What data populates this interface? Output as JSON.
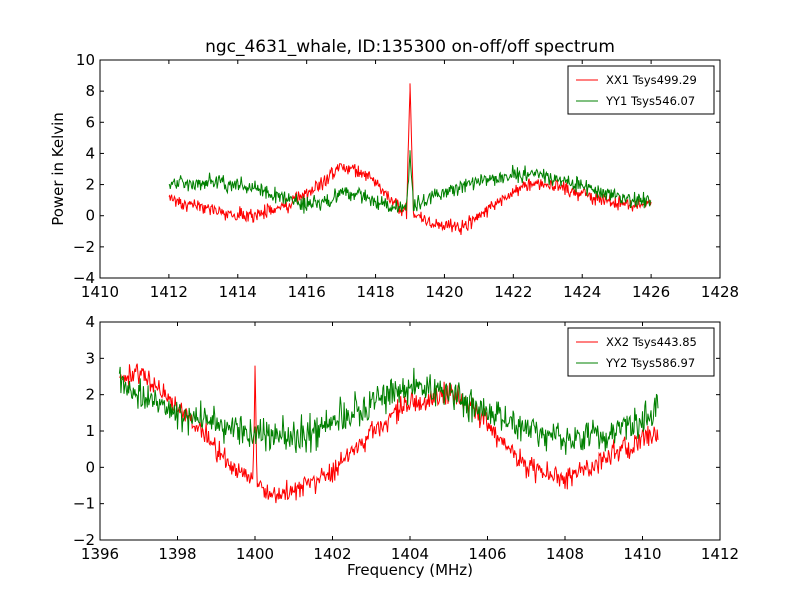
{
  "figure": {
    "title": "ngc_4631_whale, ID:135300 on-off/off spectrum"
  },
  "colors": {
    "XX": "#ff0000",
    "YY": "#008000"
  },
  "chart_data": [
    {
      "type": "line",
      "title": "ngc_4631_whale, ID:135300 on-off/off spectrum",
      "xlabel": "",
      "ylabel": "Power in Kelvin",
      "xlim": [
        1410,
        1428
      ],
      "ylim": [
        -4,
        10
      ],
      "xticks": [
        1410,
        1412,
        1414,
        1416,
        1418,
        1420,
        1422,
        1424,
        1426,
        1428
      ],
      "yticks": [
        -4,
        -2,
        0,
        2,
        4,
        6,
        8,
        10
      ],
      "grid": false,
      "legend_position": "top-right",
      "series": [
        {
          "name": "XX1 Tsys499.29",
          "color": "#ff0000",
          "x": [
            1412.0,
            1412.5,
            1413.0,
            1413.5,
            1414.0,
            1414.5,
            1415.0,
            1415.5,
            1416.0,
            1416.5,
            1417.0,
            1417.3,
            1417.7,
            1418.0,
            1418.5,
            1418.9,
            1419.0,
            1419.1,
            1419.5,
            1420.0,
            1420.5,
            1421.0,
            1421.5,
            1422.0,
            1422.5,
            1423.0,
            1423.5,
            1424.0,
            1424.5,
            1425.0,
            1425.5,
            1426.0
          ],
          "y": [
            1.0,
            0.8,
            0.5,
            0.2,
            0.0,
            0.0,
            0.3,
            0.8,
            1.5,
            2.2,
            3.2,
            3.1,
            2.6,
            2.2,
            0.8,
            0.3,
            8.5,
            0.3,
            -0.4,
            -0.6,
            -0.8,
            0.0,
            0.8,
            1.5,
            2.0,
            2.0,
            1.8,
            1.4,
            1.0,
            0.8,
            0.6,
            0.8
          ]
        },
        {
          "name": "YY1 Tsys546.07",
          "color": "#008000",
          "x": [
            1412.0,
            1412.5,
            1413.0,
            1413.5,
            1414.0,
            1414.5,
            1415.0,
            1415.5,
            1416.0,
            1416.5,
            1417.0,
            1417.5,
            1418.0,
            1418.5,
            1418.9,
            1419.0,
            1419.1,
            1419.5,
            1420.0,
            1420.5,
            1421.0,
            1421.5,
            1422.0,
            1422.5,
            1423.0,
            1423.5,
            1424.0,
            1424.5,
            1425.0,
            1425.5,
            1426.0
          ],
          "y": [
            2.0,
            2.1,
            2.1,
            2.2,
            2.0,
            1.8,
            1.4,
            1.0,
            0.8,
            0.8,
            1.5,
            1.4,
            0.9,
            0.6,
            0.5,
            4.2,
            0.5,
            1.0,
            1.4,
            1.9,
            2.2,
            2.4,
            2.6,
            2.7,
            2.6,
            2.2,
            2.0,
            1.6,
            1.3,
            1.0,
            1.0
          ]
        }
      ]
    },
    {
      "type": "line",
      "title": "",
      "xlabel": "Frequency (MHz)",
      "ylabel": "",
      "xlim": [
        1396,
        1412
      ],
      "ylim": [
        -2,
        4
      ],
      "xticks": [
        1396,
        1398,
        1400,
        1402,
        1404,
        1406,
        1408,
        1410,
        1412
      ],
      "yticks": [
        -2,
        -1,
        0,
        1,
        2,
        3,
        4
      ],
      "grid": false,
      "legend_position": "top-right",
      "series": [
        {
          "name": "XX2 Tsys443.85",
          "color": "#ff0000",
          "x": [
            1396.5,
            1397.0,
            1397.5,
            1398.0,
            1398.5,
            1399.0,
            1399.5,
            1399.95,
            1400.0,
            1400.05,
            1400.5,
            1401.0,
            1401.5,
            1402.0,
            1402.5,
            1403.0,
            1403.5,
            1404.0,
            1404.5,
            1405.0,
            1405.5,
            1406.0,
            1406.5,
            1407.0,
            1407.5,
            1408.0,
            1408.5,
            1409.0,
            1409.5,
            1410.0,
            1410.4
          ],
          "y": [
            2.5,
            2.6,
            2.2,
            1.7,
            1.1,
            0.5,
            0.0,
            -0.4,
            2.8,
            -0.4,
            -0.8,
            -0.7,
            -0.4,
            -0.1,
            0.4,
            0.9,
            1.4,
            1.8,
            1.9,
            2.0,
            1.7,
            1.2,
            0.6,
            0.1,
            -0.2,
            -0.3,
            -0.1,
            0.2,
            0.5,
            0.8,
            1.0
          ]
        },
        {
          "name": "YY2 Tsys586.97",
          "color": "#008000",
          "x": [
            1396.5,
            1397.0,
            1397.5,
            1398.0,
            1398.5,
            1399.0,
            1399.5,
            1400.0,
            1400.5,
            1401.0,
            1401.5,
            1402.0,
            1402.5,
            1403.0,
            1403.5,
            1404.0,
            1404.5,
            1405.0,
            1405.5,
            1406.0,
            1406.5,
            1407.0,
            1407.5,
            1408.0,
            1408.5,
            1409.0,
            1409.5,
            1410.0,
            1410.4
          ],
          "y": [
            2.4,
            2.0,
            1.8,
            1.5,
            1.3,
            1.2,
            1.0,
            0.9,
            0.9,
            0.9,
            1.0,
            1.2,
            1.5,
            1.8,
            2.1,
            2.2,
            2.2,
            2.1,
            1.8,
            1.5,
            1.3,
            1.1,
            0.9,
            0.8,
            0.8,
            0.8,
            1.0,
            1.3,
            1.6
          ]
        }
      ]
    }
  ]
}
